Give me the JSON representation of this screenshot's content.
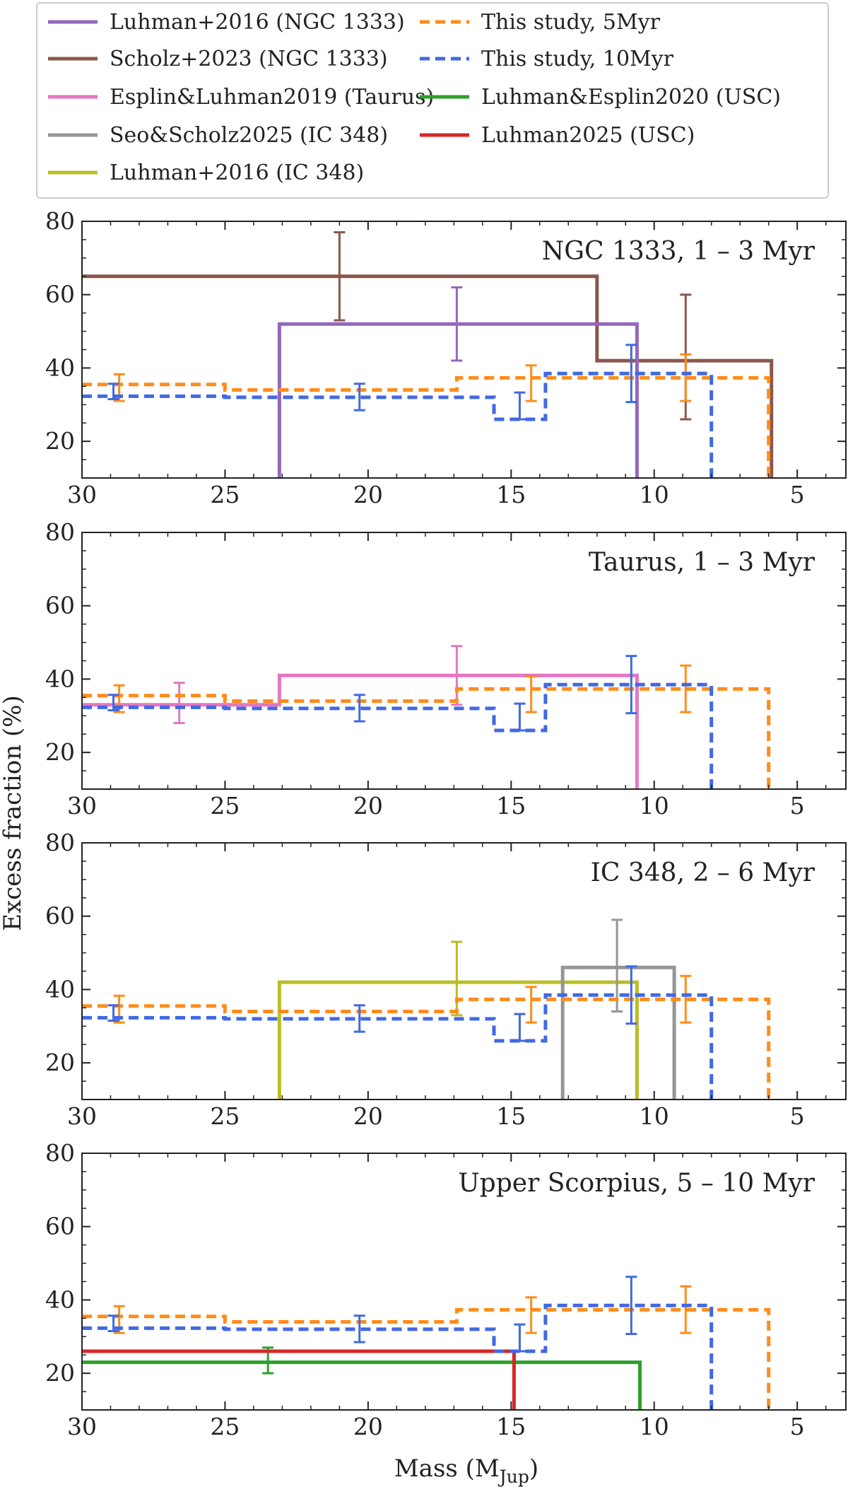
{
  "chart_data": {
    "type": "line",
    "figure_ylabel": "Excess fraction (%)",
    "xlabel_prefix": "Mass (M",
    "xlabel_sub": "Jup",
    "xlabel_suffix": ")",
    "xlim": [
      30,
      3.3
    ],
    "ylim": [
      10,
      80
    ],
    "xticks": [
      30,
      25,
      20,
      15,
      10,
      5
    ],
    "yticks": [
      20,
      40,
      60,
      80
    ],
    "legend": {
      "placement": "top",
      "entries": [
        {
          "key": "luhman2016_ngc",
          "label": "Luhman+2016 (NGC 1333)",
          "color": "#9467bd",
          "dash": "solid"
        },
        {
          "key": "scholz2023",
          "label": "Scholz+2023 (NGC 1333)",
          "color": "#8c564b",
          "dash": "solid"
        },
        {
          "key": "esplin2019",
          "label": "Esplin&Luhman2019 (Taurus)",
          "color": "#e377c2",
          "dash": "solid"
        },
        {
          "key": "seo2025",
          "label": "Seo&Scholz2025 (IC 348)",
          "color": "#969696",
          "dash": "solid"
        },
        {
          "key": "luhman2016_ic",
          "label": "Luhman+2016 (IC 348)",
          "color": "#bcbd22",
          "dash": "solid"
        },
        {
          "key": "study5",
          "label": "This study, 5Myr",
          "color": "#ff8c1a",
          "dash": "dashed"
        },
        {
          "key": "study10",
          "label": "This study, 10Myr",
          "color": "#4169e1",
          "dash": "dashed"
        },
        {
          "key": "luhman_esplin2020",
          "label": "Luhman&Esplin2020 (USC)",
          "color": "#2ca02c",
          "dash": "solid"
        },
        {
          "key": "luhman2025",
          "label": "Luhman2025 (USC)",
          "color": "#d62728",
          "dash": "solid"
        }
      ]
    },
    "common_series": [
      {
        "key": "study5",
        "color": "#ff8c1a",
        "dash": "dashed",
        "bins": [
          [
            30,
            25,
            35.5
          ],
          [
            25,
            16.9,
            34
          ],
          [
            16.9,
            13.8,
            37.3
          ],
          [
            13.8,
            6,
            37.3
          ]
        ],
        "drop_to_axis": 6,
        "errorbars": [
          {
            "x": 28.7,
            "y": 34.7,
            "lo": 31,
            "hi": 38.3
          },
          {
            "x": 14.3,
            "y": 36,
            "lo": 31,
            "hi": 40.7
          },
          {
            "x": 8.9,
            "y": 37.3,
            "lo": 31,
            "hi": 43.7
          }
        ]
      },
      {
        "key": "study10",
        "color": "#4169e1",
        "dash": "dashed",
        "bins": [
          [
            30,
            25,
            32.3
          ],
          [
            25,
            15.6,
            32
          ],
          [
            15.6,
            13.8,
            26
          ],
          [
            13.8,
            8,
            38.5
          ]
        ],
        "drop_to_axis": 8,
        "errorbars": [
          {
            "x": 28.9,
            "y": 33.5,
            "lo": 31.5,
            "hi": 35.7
          },
          {
            "x": 20.3,
            "y": 32,
            "lo": 28.5,
            "hi": 35.7
          },
          {
            "x": 14.7,
            "y": 29.5,
            "lo": 26,
            "hi": 33.3
          },
          {
            "x": 10.8,
            "y": 38.5,
            "lo": 30.7,
            "hi": 46.3
          }
        ]
      }
    ],
    "panels": [
      {
        "title": "NGC 1333, 1 – 3 Myr",
        "series": [
          {
            "key": "scholz2023",
            "color": "#8c564b",
            "points": [
              [
                30,
                65
              ],
              [
                12,
                65
              ],
              [
                12,
                42
              ],
              [
                5.9,
                42
              ],
              [
                5.9,
                10
              ]
            ],
            "errorbars": [
              {
                "x": 21,
                "y": 65,
                "lo": 53,
                "hi": 77
              },
              {
                "x": 8.9,
                "y": 42,
                "lo": 26,
                "hi": 60
              }
            ]
          },
          {
            "key": "luhman2016_ngc",
            "color": "#9467bd",
            "points": [
              [
                23.1,
                10
              ],
              [
                23.1,
                52
              ],
              [
                10.6,
                52
              ],
              [
                10.6,
                10
              ]
            ],
            "errorbars": [
              {
                "x": 16.9,
                "y": 52,
                "lo": 42,
                "hi": 62
              }
            ]
          }
        ]
      },
      {
        "title": "Taurus, 1 – 3 Myr",
        "series": [
          {
            "key": "esplin2019",
            "color": "#e377c2",
            "points": [
              [
                30,
                33
              ],
              [
                23.1,
                33
              ],
              [
                23.1,
                41
              ],
              [
                10.6,
                41
              ],
              [
                10.6,
                10
              ]
            ],
            "errorbars": [
              {
                "x": 26.6,
                "y": 33.5,
                "lo": 28,
                "hi": 39
              },
              {
                "x": 16.9,
                "y": 41,
                "lo": 33,
                "hi": 49
              }
            ]
          }
        ]
      },
      {
        "title": "IC 348, 2 – 6 Myr",
        "series": [
          {
            "key": "luhman2016_ic",
            "color": "#bcbd22",
            "points": [
              [
                23.1,
                10
              ],
              [
                23.1,
                42
              ],
              [
                10.6,
                42
              ],
              [
                10.6,
                10
              ]
            ],
            "errorbars": [
              {
                "x": 16.9,
                "y": 42,
                "lo": 33,
                "hi": 53
              }
            ]
          },
          {
            "key": "seo2025",
            "color": "#969696",
            "points": [
              [
                13.2,
                10
              ],
              [
                13.2,
                46
              ],
              [
                9.3,
                46
              ],
              [
                9.3,
                10
              ]
            ],
            "errorbars": [
              {
                "x": 11.3,
                "y": 46,
                "lo": 34,
                "hi": 59
              }
            ]
          }
        ]
      },
      {
        "title": "Upper Scorpius, 5 – 10 Myr",
        "series": [
          {
            "key": "luhman_esplin2020",
            "color": "#2ca02c",
            "points": [
              [
                30,
                23
              ],
              [
                10.5,
                23
              ],
              [
                10.5,
                10
              ]
            ],
            "errorbars": [
              {
                "x": 23.5,
                "y": 23.5,
                "lo": 20,
                "hi": 27
              }
            ]
          },
          {
            "key": "luhman2025",
            "color": "#d62728",
            "points": [
              [
                30,
                26
              ],
              [
                14.9,
                26
              ],
              [
                14.9,
                10
              ]
            ],
            "errorbars": []
          }
        ]
      }
    ]
  }
}
